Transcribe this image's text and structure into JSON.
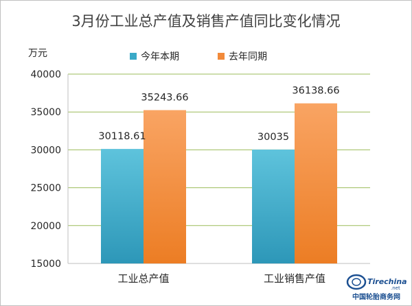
{
  "chart_data": {
    "type": "bar",
    "title": "3月份工业总产值及销售产值同比变化情况",
    "ylabel": "万元",
    "xlabel": "",
    "categories": [
      "工业总产值",
      "工业销售产值"
    ],
    "series": [
      {
        "name": "今年本期",
        "values": [
          30118.61,
          30035
        ],
        "labels": [
          "30118.61",
          "30035"
        ],
        "color": "#3aa9c7"
      },
      {
        "name": "去年同期",
        "values": [
          35243.66,
          36138.66
        ],
        "labels": [
          "35243.66",
          "36138.66"
        ],
        "color": "#f28a3a"
      }
    ],
    "ylim": [
      15000,
      40000
    ],
    "yticks": [
      15000,
      20000,
      25000,
      30000,
      35000,
      40000
    ],
    "grid": true,
    "legend_position": "top"
  },
  "watermark": {
    "logo_text": "Tirechina",
    "logo_suffix": ".net",
    "caption": "中国轮胎商务网"
  }
}
